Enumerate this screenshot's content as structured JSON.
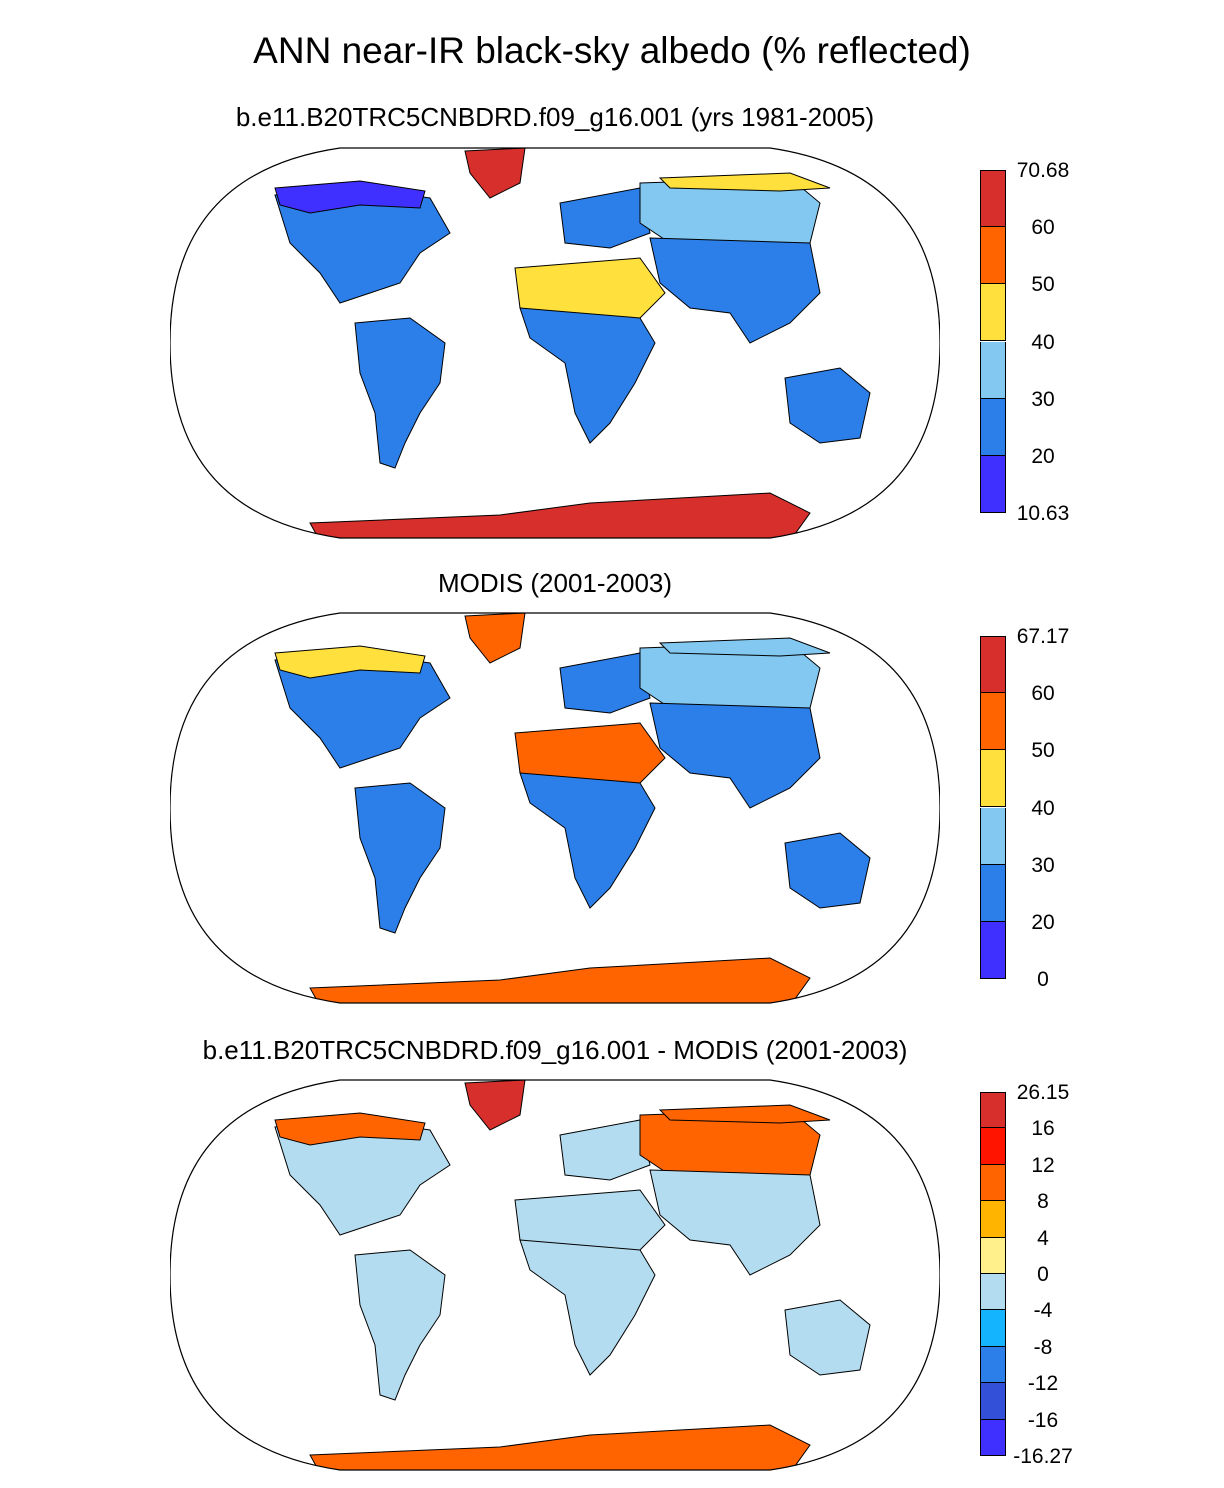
{
  "title": "ANN near-IR black-sky albedo (% reflected)",
  "panels": [
    {
      "id": "model",
      "title": "b.e11.B20TRC5CNBDRD.f09_g16.001 (yrs 1981-2005)",
      "colorbar": {
        "labels": [
          "70.68",
          "60",
          "50",
          "40",
          "30",
          "20",
          "10.63"
        ],
        "colors": [
          "#d62f2c",
          "#ff6400",
          "#ffe03c",
          "#82c8f0",
          "#2c7ee8",
          "#4030ff"
        ]
      },
      "regions": {
        "north_america": "#2c7ee8",
        "canada_north": "#4030ff",
        "greenland": "#d62f2c",
        "south_america": "#2c7ee8",
        "sahara": "#ffe03c",
        "africa": "#2c7ee8",
        "europe": "#2c7ee8",
        "siberia": "#82c8f0",
        "arctic_coast": "#ffe03c",
        "asia": "#2c7ee8",
        "australia": "#2c7ee8",
        "antarctica": "#d62f2c"
      }
    },
    {
      "id": "obs",
      "title": "MODIS (2001-2003)",
      "colorbar": {
        "labels": [
          "67.17",
          "60",
          "50",
          "40",
          "30",
          "20",
          "0"
        ],
        "colors": [
          "#d62f2c",
          "#ff6400",
          "#ffe03c",
          "#82c8f0",
          "#2c7ee8",
          "#4030ff"
        ]
      },
      "regions": {
        "north_america": "#2c7ee8",
        "canada_north": "#ffe03c",
        "greenland": "#ff6400",
        "south_america": "#2c7ee8",
        "sahara": "#ff6400",
        "africa": "#2c7ee8",
        "europe": "#2c7ee8",
        "siberia": "#82c8f0",
        "arctic_coast": "#82c8f0",
        "asia": "#2c7ee8",
        "australia": "#2c7ee8",
        "antarctica": "#ff6400"
      }
    },
    {
      "id": "diff",
      "title": "b.e11.B20TRC5CNBDRD.f09_g16.001 - MODIS (2001-2003)",
      "colorbar": {
        "labels": [
          "26.15",
          "16",
          "12",
          "8",
          "4",
          "0",
          "-4",
          "-8",
          "-12",
          "-16",
          "-16.27"
        ],
        "colors": [
          "#d62f2c",
          "#ff1400",
          "#ff6400",
          "#ffb400",
          "#fff08c",
          "#b4dcf0",
          "#14b4ff",
          "#2c7ee8",
          "#3250d8",
          "#4030ff"
        ]
      },
      "regions": {
        "north_america": "#b4dcf0",
        "canada_north": "#ff6400",
        "greenland": "#d62f2c",
        "south_america": "#b4dcf0",
        "sahara": "#b4dcf0",
        "africa": "#b4dcf0",
        "europe": "#b4dcf0",
        "siberia": "#ff6400",
        "arctic_coast": "#ff6400",
        "asia": "#b4dcf0",
        "australia": "#b4dcf0",
        "antarctica": "#ff6400"
      }
    }
  ]
}
